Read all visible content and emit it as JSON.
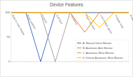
{
  "chart_data": {
    "type": "line",
    "title": "Device Features",
    "categories": [
      "Easy-to-read display",
      "Pulse analysis",
      "Controls",
      "Cuff Size",
      "Vibrations",
      "Heart rate alert",
      "Low-number alarm",
      "Irregular beat",
      "Power adaptor"
    ],
    "series": [
      {
        "name": "A: Manual Infant Monitor",
        "color": "#4472c4",
        "values": [
          100,
          100,
          0,
          100,
          100,
          100,
          100,
          100,
          100
        ]
      },
      {
        "name": "B: Automatic Arm Monitor",
        "color": "#ed7d31",
        "values": [
          100,
          100,
          100,
          100,
          100,
          60,
          100,
          100,
          100
        ]
      },
      {
        "name": "C: Automatic Wrist Monitor",
        "color": "#a5a5a5",
        "values": [
          100,
          100,
          100,
          0,
          100,
          100,
          100,
          100,
          100
        ]
      },
      {
        "name": "D: Deluxe Automatic Wrist Monitor",
        "color": "#ffc000",
        "values": [
          100,
          100,
          100,
          100,
          100,
          100,
          70,
          100,
          100
        ]
      }
    ],
    "ylim": [
      0,
      100
    ],
    "yticks": [
      0,
      50,
      100
    ],
    "grid": false,
    "legend": "lower right"
  }
}
